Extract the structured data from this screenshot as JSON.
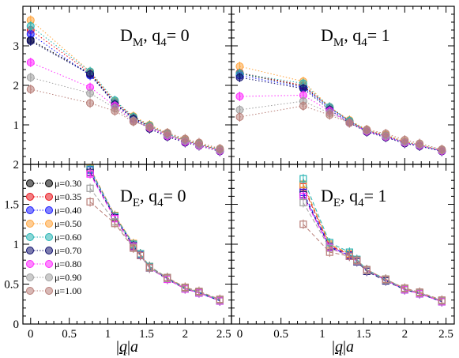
{
  "figure": {
    "xlabel": "|q|a"
  },
  "chart_data": [
    {
      "type": "line",
      "panel": "top-left",
      "title": "D_M, q_4= 0",
      "xlabel": "",
      "ylabel": "",
      "xlim": [
        -0.1,
        2.6
      ],
      "ylim": [
        0,
        4
      ],
      "xticks": [
        "0",
        "0.5",
        "1",
        "1.5",
        "2",
        "2.5"
      ],
      "yticks": [
        "1",
        "2",
        "3"
      ],
      "line_style": "dotted",
      "x": [
        0,
        0.77,
        1.09,
        1.33,
        1.54,
        1.77,
        2.0,
        2.18,
        2.45
      ],
      "series": [
        {
          "name": "μ=0.30",
          "color": "#000000",
          "values": [
            3.15,
            2.3,
            1.55,
            1.18,
            0.95,
            0.75,
            0.58,
            0.5,
            0.35
          ]
        },
        {
          "name": "μ=0.35",
          "color": "#e8141c",
          "values": [
            3.4,
            2.32,
            1.58,
            1.2,
            0.97,
            0.76,
            0.6,
            0.51,
            0.36
          ]
        },
        {
          "name": "μ=0.40",
          "color": "#1c1cff",
          "values": [
            3.3,
            2.25,
            1.56,
            1.16,
            0.93,
            0.72,
            0.57,
            0.49,
            0.33
          ]
        },
        {
          "name": "μ=0.50",
          "color": "#ffa43c",
          "values": [
            3.65,
            2.35,
            1.6,
            1.22,
            1.0,
            0.8,
            0.63,
            0.53,
            0.38
          ]
        },
        {
          "name": "μ=0.60",
          "color": "#28b4b4",
          "values": [
            3.5,
            2.35,
            1.62,
            1.2,
            0.98,
            0.78,
            0.61,
            0.52,
            0.37
          ]
        },
        {
          "name": "μ=0.70",
          "color": "#10106e",
          "values": [
            3.12,
            2.28,
            1.52,
            1.15,
            0.9,
            0.7,
            0.55,
            0.47,
            0.33
          ]
        },
        {
          "name": "μ=0.80",
          "color": "#ff28ff",
          "values": [
            2.58,
            1.95,
            1.48,
            1.1,
            0.93,
            0.72,
            0.57,
            0.48,
            0.34
          ]
        },
        {
          "name": "μ=0.90",
          "color": "#a0a0a0",
          "values": [
            2.2,
            1.8,
            1.42,
            1.1,
            0.95,
            0.75,
            0.6,
            0.5,
            0.36
          ]
        },
        {
          "name": "μ=1.00",
          "color": "#b87e78",
          "values": [
            1.9,
            1.55,
            1.35,
            1.08,
            0.95,
            0.8,
            0.65,
            0.55,
            0.4
          ]
        }
      ]
    },
    {
      "type": "line",
      "panel": "top-right",
      "title": "D_M, q_4= 1",
      "xlabel": "",
      "ylabel": "",
      "xlim": [
        -0.1,
        2.6
      ],
      "ylim": [
        0,
        4
      ],
      "xticks": [
        "0",
        "0.5",
        "1",
        "1.5",
        "2",
        "2.5"
      ],
      "yticks": [],
      "line_style": "dotted",
      "x": [
        0,
        0.77,
        1.09,
        1.33,
        1.54,
        1.77,
        2.0,
        2.18,
        2.45
      ],
      "series": [
        {
          "name": "μ=0.30",
          "color": "#000000",
          "values": [
            2.3,
            1.98,
            1.45,
            1.1,
            0.85,
            0.72,
            0.55,
            0.48,
            0.34
          ]
        },
        {
          "name": "μ=0.35",
          "color": "#e8141c",
          "values": [
            2.32,
            2.0,
            1.45,
            1.1,
            0.86,
            0.72,
            0.56,
            0.49,
            0.35
          ]
        },
        {
          "name": "μ=0.40",
          "color": "#1c1cff",
          "values": [
            2.25,
            1.95,
            1.42,
            1.08,
            0.84,
            0.7,
            0.54,
            0.47,
            0.33
          ]
        },
        {
          "name": "μ=0.50",
          "color": "#ffa43c",
          "values": [
            2.48,
            2.1,
            1.45,
            1.12,
            0.88,
            0.75,
            0.58,
            0.5,
            0.36
          ]
        },
        {
          "name": "μ=0.60",
          "color": "#28b4b4",
          "values": [
            2.3,
            2.05,
            1.45,
            1.1,
            0.86,
            0.73,
            0.56,
            0.49,
            0.35
          ]
        },
        {
          "name": "μ=0.70",
          "color": "#10106e",
          "values": [
            2.2,
            1.92,
            1.38,
            1.05,
            0.82,
            0.68,
            0.53,
            0.46,
            0.33
          ]
        },
        {
          "name": "μ=0.80",
          "color": "#ff28ff",
          "values": [
            1.72,
            1.75,
            1.35,
            1.05,
            0.84,
            0.7,
            0.55,
            0.48,
            0.34
          ]
        },
        {
          "name": "μ=0.90",
          "color": "#a0a0a0",
          "values": [
            1.38,
            1.6,
            1.3,
            1.05,
            0.86,
            0.72,
            0.57,
            0.5,
            0.36
          ]
        },
        {
          "name": "μ=1.00",
          "color": "#b87e78",
          "values": [
            1.2,
            1.48,
            1.25,
            1.05,
            0.88,
            0.78,
            0.62,
            0.53,
            0.38
          ]
        }
      ]
    },
    {
      "type": "line",
      "panel": "bottom-left",
      "title": "D_E, q_4= 0",
      "xlabel": "|q|a",
      "ylabel": "",
      "xlim": [
        -0.1,
        2.6
      ],
      "ylim": [
        0,
        2
      ],
      "xticks": [
        "0",
        "0.5",
        "1",
        "1.5",
        "2",
        "2.5"
      ],
      "yticks": [
        "0",
        "0.5",
        "1",
        "1.5",
        "2"
      ],
      "line_style": "dashed",
      "x": [
        0.77,
        1.09,
        1.33,
        1.42,
        1.54,
        1.77,
        2.0,
        2.18,
        2.45
      ],
      "series": [
        {
          "name": "μ=0.30",
          "color": "#000000",
          "values": [
            1.95,
            1.35,
            1.0,
            0.88,
            0.72,
            0.58,
            0.45,
            0.4,
            0.3
          ]
        },
        {
          "name": "μ=0.35",
          "color": "#e8141c",
          "values": [
            1.95,
            1.36,
            1.0,
            0.88,
            0.72,
            0.58,
            0.45,
            0.4,
            0.3
          ]
        },
        {
          "name": "μ=0.40",
          "color": "#1c1cff",
          "values": [
            1.93,
            1.35,
            1.0,
            0.87,
            0.71,
            0.57,
            0.45,
            0.39,
            0.29
          ]
        },
        {
          "name": "μ=0.50",
          "color": "#ffa43c",
          "values": [
            1.95,
            1.36,
            1.01,
            0.88,
            0.72,
            0.58,
            0.46,
            0.4,
            0.3
          ]
        },
        {
          "name": "μ=0.60",
          "color": "#28b4b4",
          "values": [
            1.94,
            1.35,
            1.0,
            0.88,
            0.72,
            0.58,
            0.45,
            0.4,
            0.3
          ]
        },
        {
          "name": "μ=0.70",
          "color": "#10106e",
          "values": [
            1.9,
            1.33,
            0.98,
            0.86,
            0.7,
            0.56,
            0.44,
            0.39,
            0.29
          ]
        },
        {
          "name": "μ=0.80",
          "color": "#ff28ff",
          "values": [
            1.88,
            1.32,
            0.97,
            0.86,
            0.7,
            0.56,
            0.44,
            0.39,
            0.29
          ]
        },
        {
          "name": "μ=0.90",
          "color": "#a0a0a0",
          "values": [
            1.7,
            1.28,
            0.96,
            0.86,
            0.7,
            0.57,
            0.45,
            0.4,
            0.3
          ]
        },
        {
          "name": "μ=1.00",
          "color": "#b87e78",
          "values": [
            1.53,
            1.26,
            0.95,
            0.86,
            0.71,
            0.58,
            0.46,
            0.41,
            0.31
          ]
        }
      ]
    },
    {
      "type": "line",
      "panel": "bottom-right",
      "title": "D_E, q_4= 1",
      "xlabel": "|q|a",
      "ylabel": "",
      "xlim": [
        -0.1,
        2.6
      ],
      "ylim": [
        0,
        2
      ],
      "xticks": [
        "0",
        "0.5",
        "1",
        "1.5",
        "2",
        "2.5"
      ],
      "yticks": [],
      "line_style": "dashed",
      "x": [
        0.77,
        1.09,
        1.33,
        1.42,
        1.54,
        1.77,
        2.0,
        2.18,
        2.45
      ],
      "series": [
        {
          "name": "μ=0.30",
          "color": "#000000",
          "values": [
            1.75,
            1.0,
            0.88,
            0.8,
            0.68,
            0.56,
            0.44,
            0.39,
            0.29
          ]
        },
        {
          "name": "μ=0.35",
          "color": "#e8141c",
          "values": [
            1.72,
            0.98,
            0.87,
            0.8,
            0.68,
            0.56,
            0.44,
            0.39,
            0.29
          ]
        },
        {
          "name": "μ=0.40",
          "color": "#1c1cff",
          "values": [
            1.65,
            0.97,
            0.86,
            0.79,
            0.67,
            0.55,
            0.43,
            0.38,
            0.28
          ]
        },
        {
          "name": "μ=0.50",
          "color": "#ffa43c",
          "values": [
            1.75,
            1.0,
            0.88,
            0.8,
            0.68,
            0.56,
            0.44,
            0.39,
            0.29
          ]
        },
        {
          "name": "μ=0.60",
          "color": "#28b4b4",
          "values": [
            1.82,
            1.02,
            0.9,
            0.81,
            0.68,
            0.56,
            0.44,
            0.39,
            0.29
          ]
        },
        {
          "name": "μ=0.70",
          "color": "#10106e",
          "values": [
            1.62,
            0.96,
            0.85,
            0.78,
            0.66,
            0.54,
            0.43,
            0.38,
            0.28
          ]
        },
        {
          "name": "μ=0.80",
          "color": "#ff28ff",
          "values": [
            1.6,
            0.96,
            0.85,
            0.79,
            0.67,
            0.55,
            0.43,
            0.38,
            0.28
          ]
        },
        {
          "name": "μ=0.90",
          "color": "#a0a0a0",
          "values": [
            1.52,
            0.95,
            0.85,
            0.79,
            0.67,
            0.55,
            0.44,
            0.39,
            0.29
          ]
        },
        {
          "name": "μ=1.00",
          "color": "#b87e78",
          "values": [
            1.25,
            0.9,
            0.85,
            0.8,
            0.68,
            0.56,
            0.45,
            0.4,
            0.3
          ]
        }
      ]
    }
  ]
}
